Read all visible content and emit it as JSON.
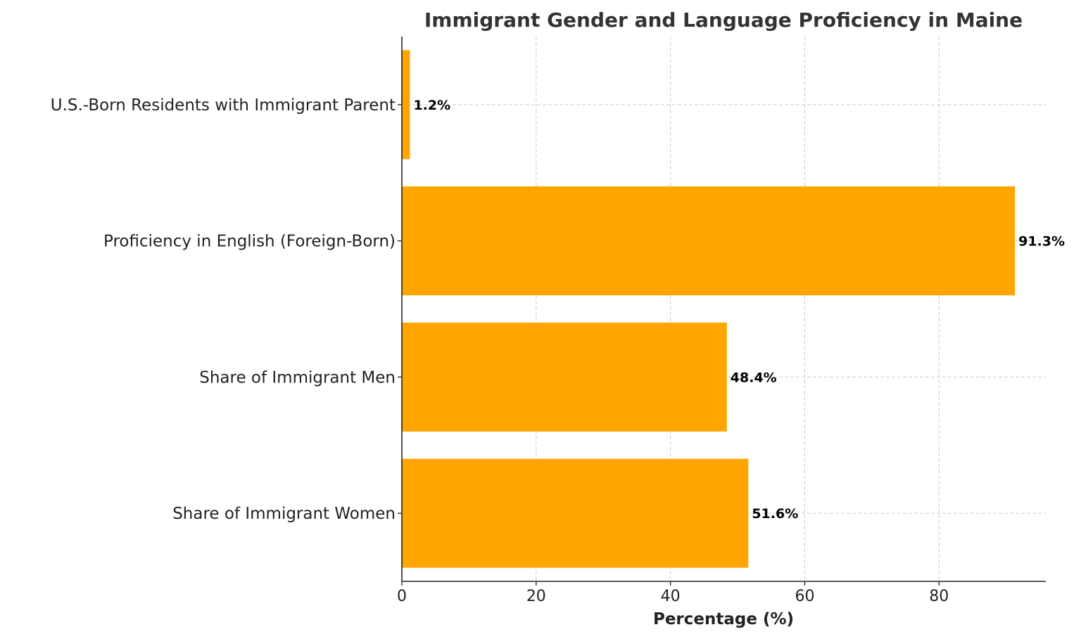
{
  "chart_data": {
    "type": "bar",
    "orientation": "horizontal",
    "title": "Immigrant Gender and Language Proficiency in Maine",
    "xlabel": "Percentage (%)",
    "ylabel": "",
    "categories": [
      "Share of Immigrant Women",
      "Share of Immigrant Men",
      "Proficiency in English (Foreign-Born)",
      "U.S.-Born Residents with Immigrant Parent"
    ],
    "values": [
      51.6,
      48.4,
      91.3,
      1.2
    ],
    "data_labels": [
      "51.6%",
      "48.4%",
      "91.3%",
      "1.2%"
    ],
    "xlim": [
      0,
      95.9
    ],
    "xticks": [
      0,
      20,
      40,
      60,
      80
    ],
    "xtick_labels": [
      "0",
      "20",
      "40",
      "60",
      "80"
    ],
    "grid": true,
    "grid_style": "dashed",
    "bar_color": "#FFA500",
    "text_color": "#222222"
  }
}
